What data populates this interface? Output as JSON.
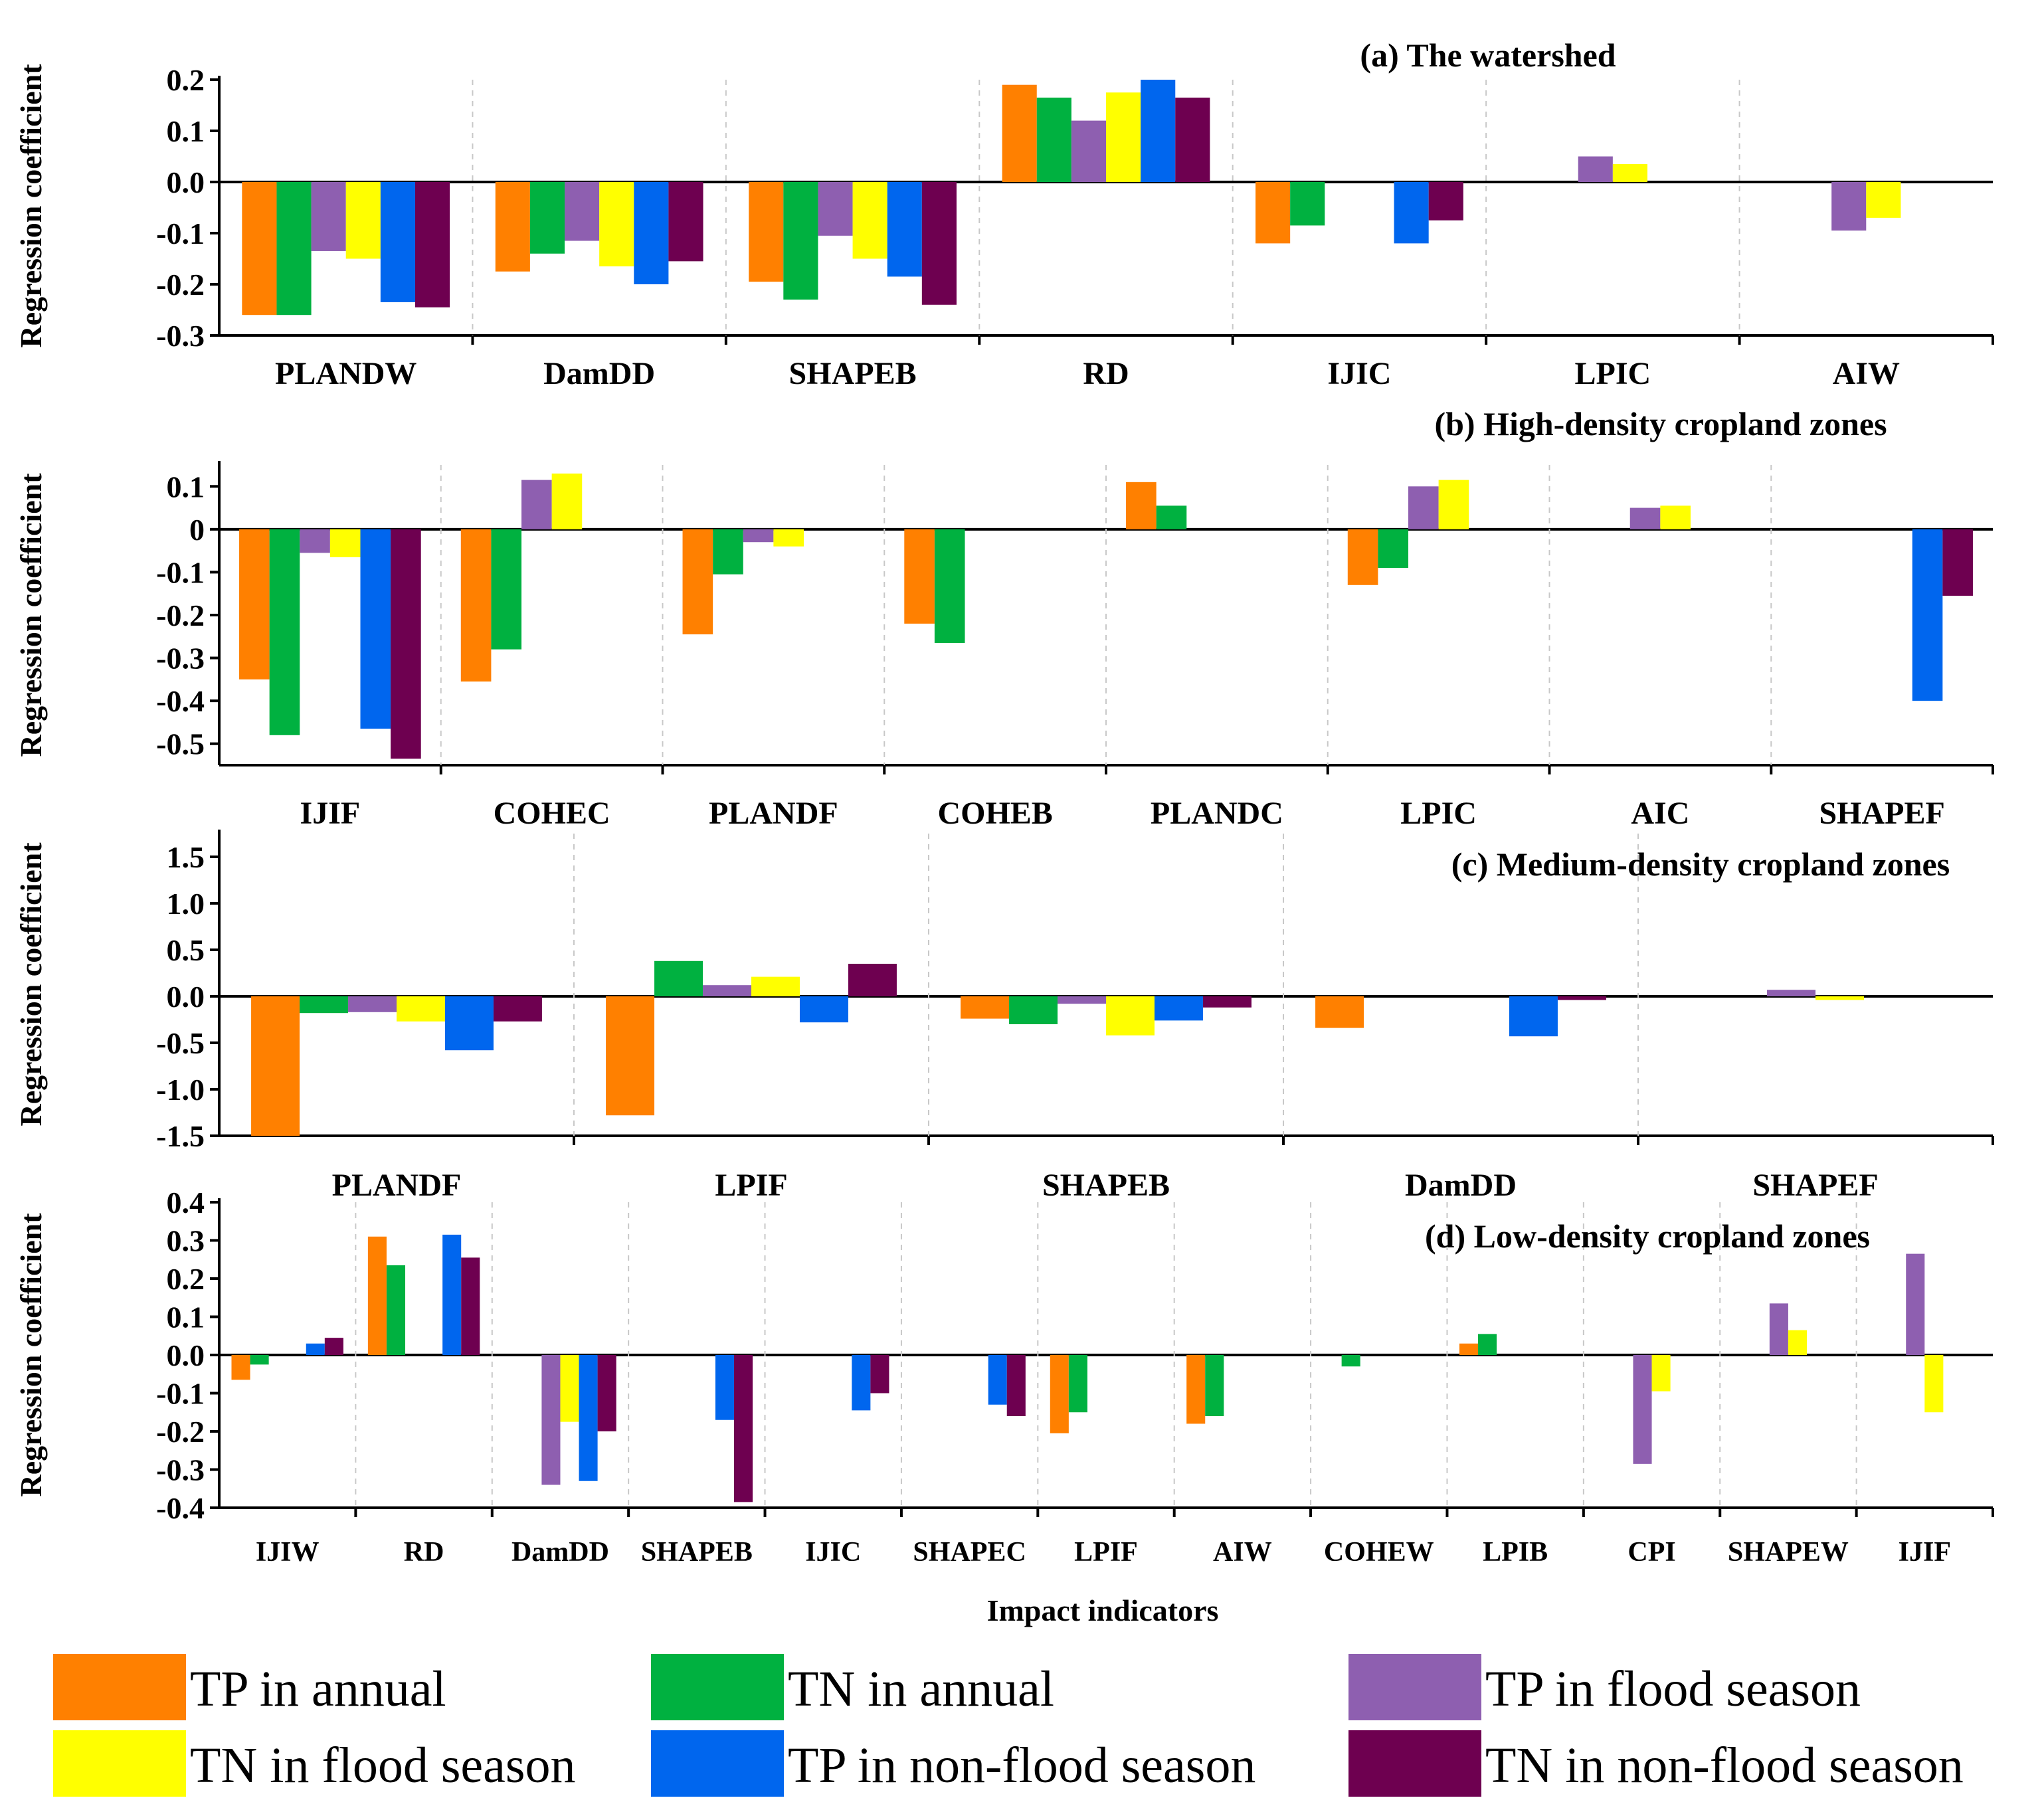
{
  "legend": [
    {
      "name": "TP in annual",
      "color": "#FF8000"
    },
    {
      "name": "TN in annual",
      "color": "#00B140"
    },
    {
      "name": "TP in flood season",
      "color": "#8E5FB0"
    },
    {
      "name": "TN in flood season",
      "color": "#FFFF00"
    },
    {
      "name": "TP in non-flood season",
      "color": "#0066EE"
    },
    {
      "name": "TN in non-flood season",
      "color": "#6E0050"
    }
  ],
  "x_axis_label": "Impact indicators",
  "chart_data": [
    {
      "type": "bar",
      "title": "(a) The watershed",
      "ylabel": "Regression coefficient",
      "ylim": [
        -0.3,
        0.2
      ],
      "yticks": [
        "-0.3",
        "-0.2",
        "-0.1",
        "0.0",
        "0.1",
        "0.2"
      ],
      "categories": [
        "PLANDW",
        "DamDD",
        "SHAPEB",
        "RD",
        "IJIC",
        "LPIC",
        "AIW"
      ],
      "series": [
        {
          "name": "TP in annual",
          "values": [
            -0.26,
            -0.175,
            -0.195,
            0.19,
            -0.12,
            null,
            null
          ]
        },
        {
          "name": "TN in annual",
          "values": [
            -0.26,
            -0.14,
            -0.23,
            0.165,
            -0.085,
            null,
            null
          ]
        },
        {
          "name": "TP in flood season",
          "values": [
            -0.135,
            -0.115,
            -0.105,
            0.12,
            null,
            0.05,
            -0.095
          ]
        },
        {
          "name": "TN in flood season",
          "values": [
            -0.15,
            -0.165,
            -0.15,
            0.175,
            null,
            0.035,
            -0.07
          ]
        },
        {
          "name": "TP in non-flood season",
          "values": [
            -0.235,
            -0.2,
            -0.185,
            0.2,
            -0.12,
            null,
            null
          ]
        },
        {
          "name": "TN in non-flood season",
          "values": [
            -0.245,
            -0.155,
            -0.24,
            0.165,
            -0.075,
            null,
            null
          ]
        }
      ]
    },
    {
      "type": "bar",
      "title": "(b) High-density cropland  zones",
      "ylabel": "Regression coefficient",
      "ylim": [
        -0.55,
        0.15
      ],
      "yticks": [
        "-0.5",
        "-0.4",
        "-0.3",
        "-0.2",
        "-0.1",
        "0",
        "0.1"
      ],
      "categories": [
        "IJIF",
        "COHEC",
        "PLANDF",
        "COHEB",
        "PLANDC",
        "LPIC",
        "AIC",
        "SHAPEF"
      ],
      "series": [
        {
          "name": "TP in annual",
          "values": [
            -0.35,
            -0.355,
            -0.245,
            -0.22,
            0.11,
            -0.13,
            null,
            null
          ]
        },
        {
          "name": "TN in annual",
          "values": [
            -0.48,
            -0.28,
            -0.105,
            -0.265,
            0.055,
            -0.09,
            null,
            null
          ]
        },
        {
          "name": "TP in flood season",
          "values": [
            -0.055,
            0.115,
            -0.03,
            null,
            null,
            0.1,
            0.05,
            null
          ]
        },
        {
          "name": "TN in flood season",
          "values": [
            -0.065,
            0.13,
            -0.04,
            null,
            null,
            0.115,
            0.055,
            null
          ]
        },
        {
          "name": "TP in non-flood season",
          "values": [
            -0.465,
            null,
            null,
            null,
            null,
            null,
            null,
            -0.4
          ]
        },
        {
          "name": "TN in non-flood season",
          "values": [
            -0.535,
            null,
            null,
            null,
            null,
            null,
            null,
            -0.155
          ]
        }
      ]
    },
    {
      "type": "bar",
      "title": "(c) Medium-density cropland  zones",
      "ylabel": "Regression coefficient",
      "ylim": [
        -1.5,
        1.75
      ],
      "yticks": [
        "-1.5",
        "-1.0",
        "-0.5",
        "0.0",
        "0.5",
        "1.0",
        "1.5"
      ],
      "categories": [
        "PLANDF",
        "LPIF",
        "SHAPEB",
        "DamDD",
        "SHAPEF"
      ],
      "series": [
        {
          "name": "TP in annual",
          "values": [
            -1.5,
            -1.28,
            -0.24,
            -0.34,
            null
          ]
        },
        {
          "name": "TN in annual",
          "values": [
            -0.18,
            0.38,
            -0.3,
            null,
            null
          ]
        },
        {
          "name": "TP in flood season",
          "values": [
            -0.17,
            0.12,
            -0.08,
            null,
            0.07
          ]
        },
        {
          "name": "TN in flood season",
          "values": [
            -0.27,
            0.21,
            -0.42,
            null,
            -0.04
          ]
        },
        {
          "name": "TP in non-flood season",
          "values": [
            -0.58,
            -0.28,
            -0.26,
            -0.43,
            null
          ]
        },
        {
          "name": "TN in non-flood season",
          "values": [
            -0.27,
            0.35,
            -0.12,
            -0.04,
            null
          ]
        }
      ]
    },
    {
      "type": "bar",
      "title": "(d) Low-density cropland  zones",
      "ylabel": "Regression coefficient",
      "xlabel": "Impact indicators",
      "ylim": [
        -0.4,
        0.4
      ],
      "yticks": [
        "-0.4",
        "-0.3",
        "-0.2",
        "-0.1",
        "0.0",
        "0.1",
        "0.2",
        "0.3",
        "0.4"
      ],
      "categories": [
        "IJIW",
        "RD",
        "DamDD",
        "SHAPEB",
        "IJIC",
        "SHAPEC",
        "LPIF",
        "AIW",
        "COHEW",
        "LPIB",
        "CPI",
        "SHAPEW",
        "IJIF"
      ],
      "series": [
        {
          "name": "TP in annual",
          "values": [
            -0.065,
            0.31,
            null,
            null,
            null,
            null,
            -0.205,
            -0.18,
            null,
            0.03,
            null,
            null,
            null
          ]
        },
        {
          "name": "TN in annual",
          "values": [
            -0.025,
            0.235,
            null,
            null,
            null,
            null,
            -0.15,
            -0.16,
            -0.03,
            0.055,
            null,
            null,
            null
          ]
        },
        {
          "name": "TP in flood season",
          "values": [
            null,
            null,
            -0.34,
            null,
            null,
            null,
            null,
            null,
            null,
            null,
            -0.285,
            0.135,
            0.265
          ]
        },
        {
          "name": "TN in flood season",
          "values": [
            null,
            null,
            -0.175,
            null,
            null,
            null,
            null,
            null,
            null,
            null,
            -0.095,
            0.065,
            -0.15
          ]
        },
        {
          "name": "TP in non-flood season",
          "values": [
            0.03,
            0.315,
            -0.33,
            -0.17,
            -0.145,
            -0.13,
            null,
            null,
            null,
            null,
            null,
            null,
            null
          ]
        },
        {
          "name": "TN in non-flood season",
          "values": [
            0.045,
            0.255,
            -0.2,
            -0.385,
            -0.1,
            -0.16,
            null,
            null,
            null,
            null,
            null,
            null,
            null
          ]
        }
      ]
    }
  ]
}
